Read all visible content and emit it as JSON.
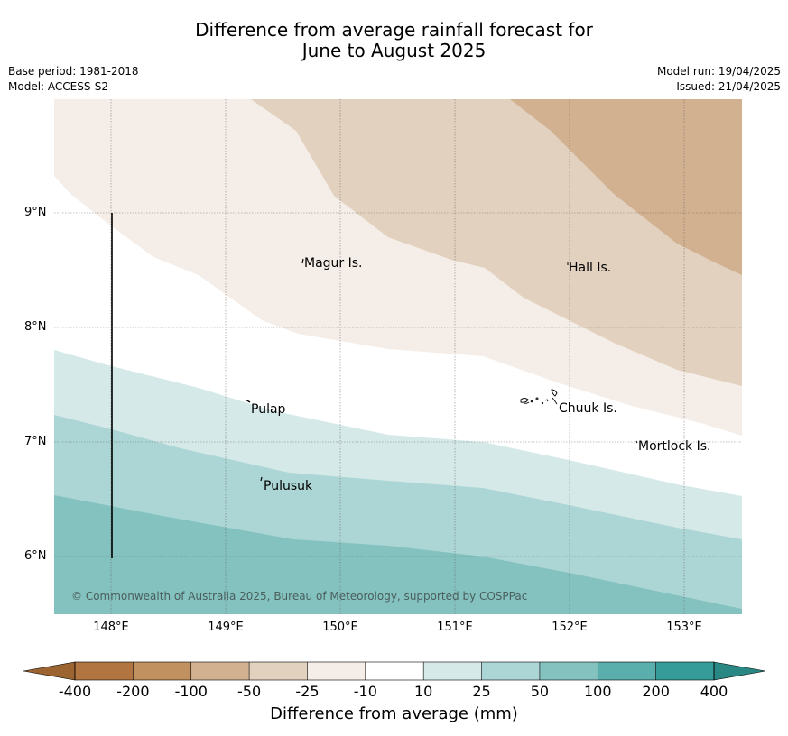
{
  "title_line1": "Difference from average rainfall forecast for",
  "title_line2": "June to August 2025",
  "base_period": "Base period: 1981-2018",
  "model": "Model: ACCESS-S2",
  "model_run": "Model run: 19/04/2025",
  "issued": "Issued: 21/04/2025",
  "lat_labels": [
    "9°N",
    "8°N",
    "7°N",
    "6°N"
  ],
  "lon_labels": [
    "148°E",
    "149°E",
    "150°E",
    "151°E",
    "152°E",
    "153°E"
  ],
  "places": {
    "magur": "Magur Is.",
    "hall": "Hall Is.",
    "pulap": "Pulap",
    "chuuk": "Chuuk Is.",
    "mortlock": "Mortlock Is.",
    "pulusuk": "Pulusuk"
  },
  "copyright": "© Commonwealth of Australia 2025, Bureau of Meteorology, supported by COSPPac",
  "colorbar": {
    "title": "Difference from average (mm)",
    "labels": [
      "-400",
      "-200",
      "-100",
      "-50",
      "-25",
      "-10",
      "10",
      "25",
      "50",
      "100",
      "200",
      "400"
    ],
    "colors": [
      "#b07540",
      "#c1925f",
      "#d2b190",
      "#e3d1bf",
      "#f5ede7",
      "#ffffff",
      "#d5e9e8",
      "#acd6d5",
      "#84c2c0",
      "#5aafac",
      "#359c99"
    ],
    "under_color": "#9b6430",
    "over_color": "#2a8884"
  }
}
